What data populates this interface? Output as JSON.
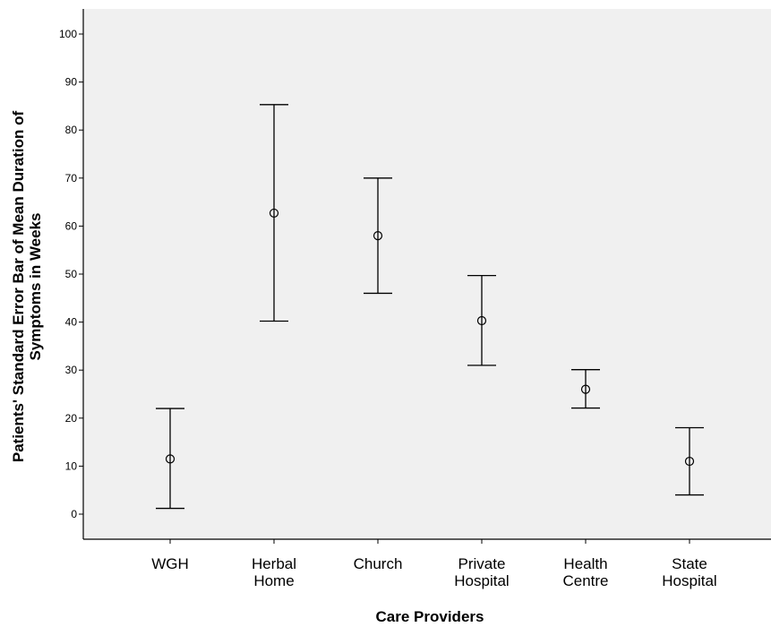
{
  "chart_data": {
    "type": "errorbar",
    "xlabel": "Care Providers",
    "ylabel_lines": [
      "Patients' Standard Error Bar of Mean Duration of",
      "Symptoms in Weeks"
    ],
    "ylim": [
      -5,
      105
    ],
    "yticks": [
      0,
      10,
      20,
      30,
      40,
      50,
      60,
      70,
      80,
      90,
      100
    ],
    "grid": false,
    "categories": [
      {
        "label_lines": [
          "WGH"
        ]
      },
      {
        "label_lines": [
          "Herbal",
          "Home"
        ]
      },
      {
        "label_lines": [
          "Church"
        ]
      },
      {
        "label_lines": [
          "Private",
          "Hospital"
        ]
      },
      {
        "label_lines": [
          "Health",
          "Centre"
        ]
      },
      {
        "label_lines": [
          "State",
          "Hospital"
        ]
      }
    ],
    "means": [
      11.5,
      62.7,
      58.0,
      40.3,
      26.0,
      11.0
    ],
    "lower": [
      1.2,
      40.2,
      46.0,
      31.0,
      22.1,
      4.0
    ],
    "upper": [
      22.0,
      85.3,
      70.0,
      49.7,
      30.1,
      18.0
    ],
    "colors": {
      "plot_background": "#f0f0f0",
      "ink": "#000000"
    }
  }
}
